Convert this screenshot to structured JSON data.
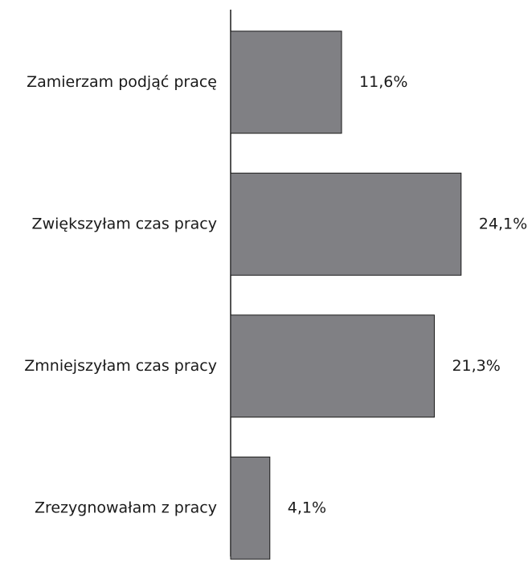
{
  "chart_data": {
    "type": "barh",
    "categories": [
      "Zamierzam podjąć pracę",
      "Zwiększyłam czas pracy",
      "Zmniejszyłam czas pracy",
      "Zrezygnowałam z pracy"
    ],
    "values": [
      11.6,
      24.1,
      21.3,
      4.1
    ],
    "value_labels": [
      "11,6%",
      "24,1%",
      "21,3%",
      "4,1%"
    ],
    "color": "#808084"
  }
}
